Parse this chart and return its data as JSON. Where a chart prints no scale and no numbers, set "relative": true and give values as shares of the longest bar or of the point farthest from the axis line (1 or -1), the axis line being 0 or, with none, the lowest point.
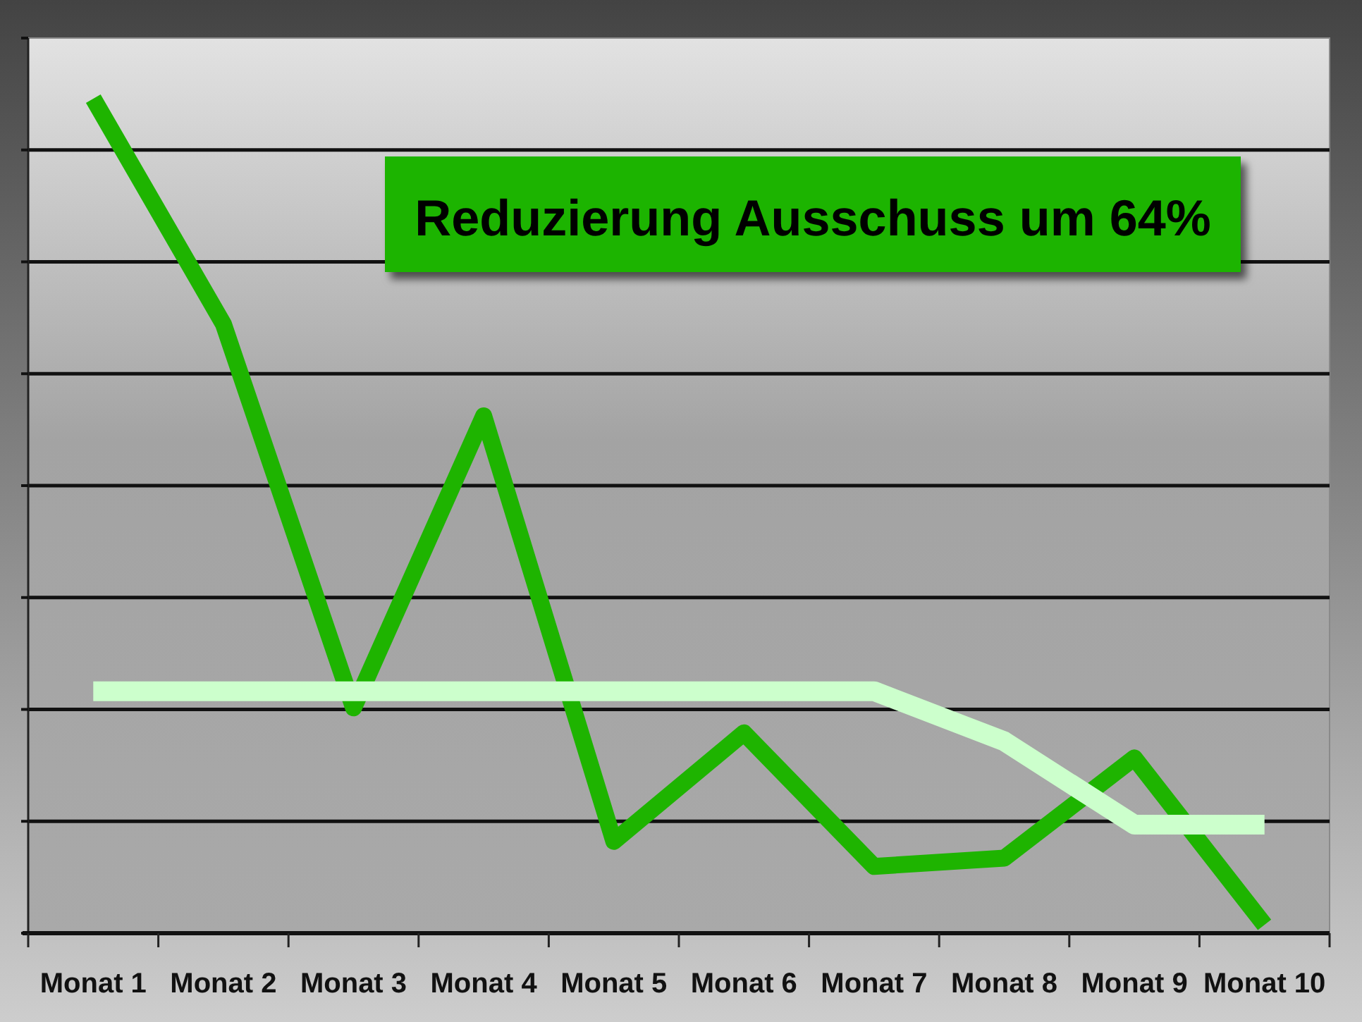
{
  "chart_data": {
    "type": "line",
    "categories": [
      "Monat 1",
      "Monat 2",
      "Monat 3",
      "Monat 4",
      "Monat 5",
      "Monat 6",
      "Monat 7",
      "Monat 8",
      "Monat 9",
      "Monat 10"
    ],
    "relative": true,
    "grid": "y",
    "annotations": [
      "Reduzierung Ausschuss um 64%"
    ],
    "series": [
      {
        "color": "#1eb400",
        "values": [
          1,
          0.73,
          0.27,
          0.62,
          0.11,
          0.24,
          0.08,
          0.09,
          0.21,
          0.01
        ]
      },
      {
        "color": "#ccffcc",
        "values": [
          0.29,
          0.29,
          0.29,
          0.29,
          0.29,
          0.29,
          0.29,
          0.23,
          0.13,
          0.13
        ]
      }
    ]
  }
}
